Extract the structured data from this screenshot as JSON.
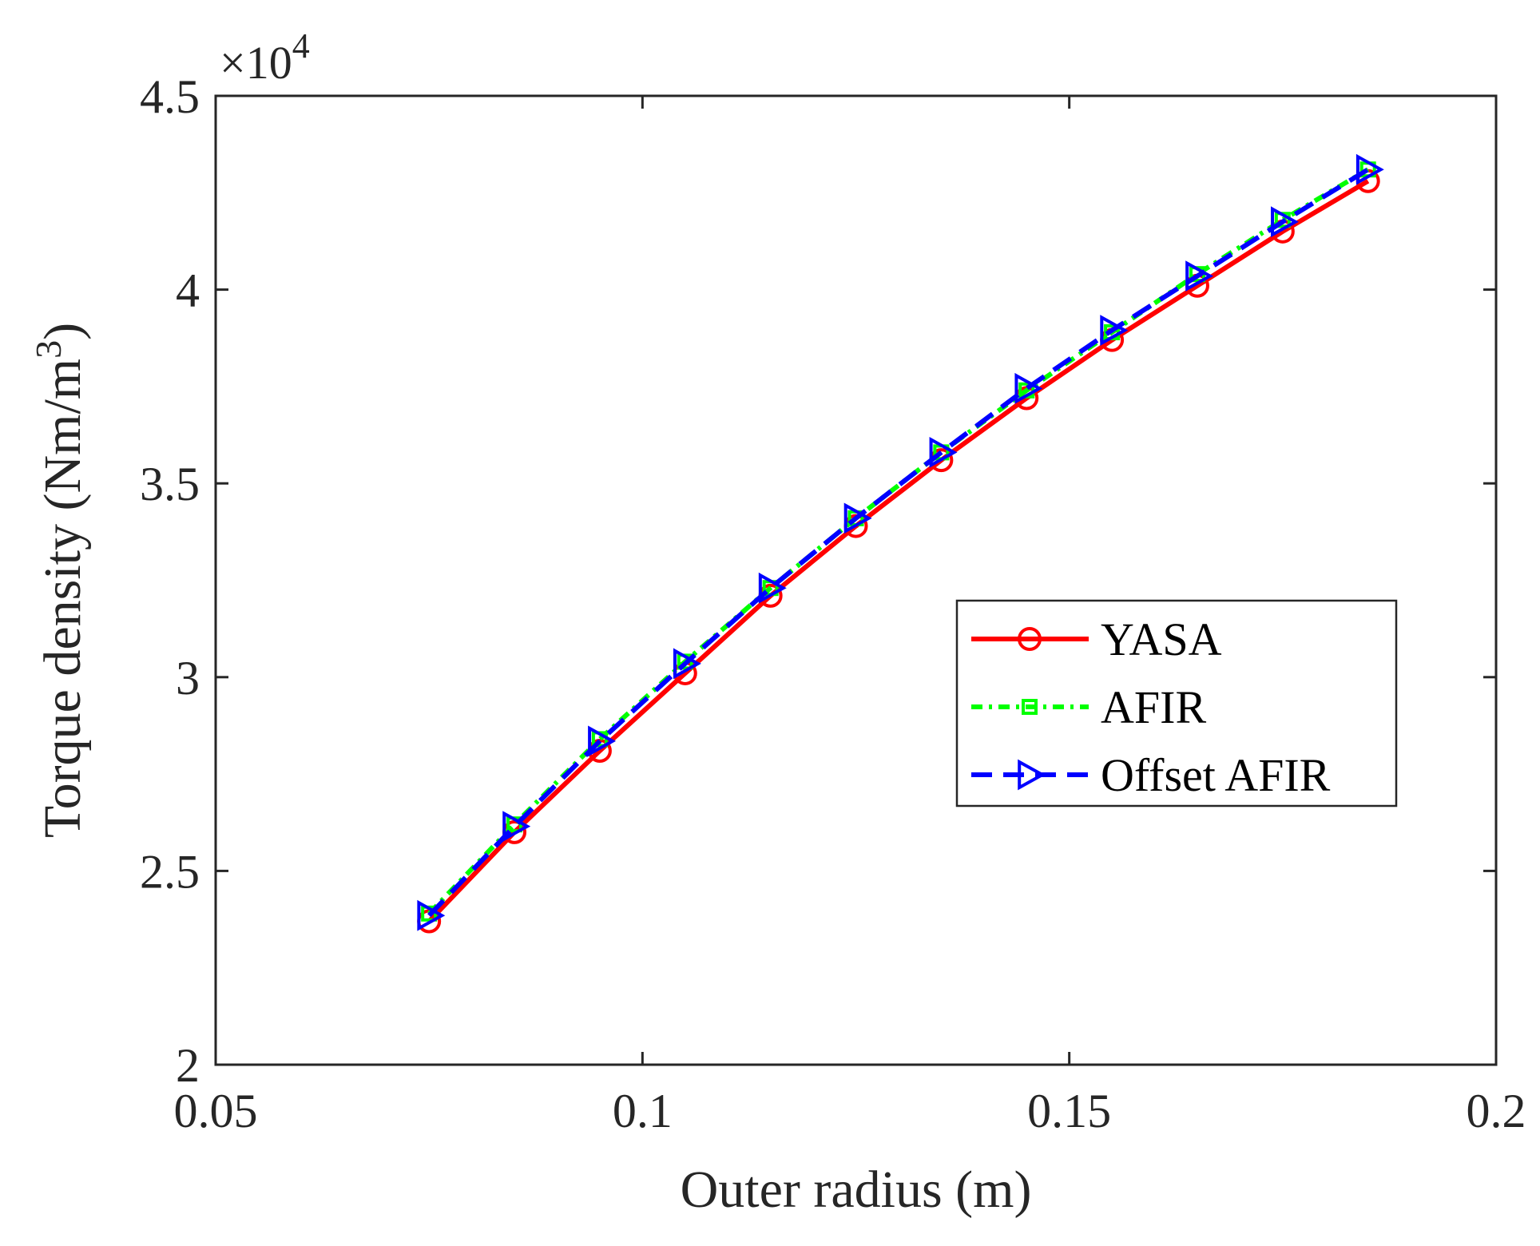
{
  "chart_data": {
    "type": "line",
    "xlabel": "Outer radius (m)",
    "ylabel_main": "Torque density (Nm/m",
    "ylabel_sup": "3",
    "ylabel_close": ")",
    "y_exponent_prefix": "×10",
    "y_exponent_power": "4",
    "xlim": [
      0.05,
      0.2
    ],
    "ylim": [
      20000,
      45000
    ],
    "y_scale": 10000,
    "xticks": [
      0.05,
      0.1,
      0.15,
      0.2
    ],
    "xtick_labels": [
      "0.05",
      "0.1",
      "0.15",
      "0.2"
    ],
    "yticks": [
      20000,
      25000,
      30000,
      35000,
      40000,
      45000
    ],
    "ytick_labels": [
      "2",
      "2.5",
      "3",
      "3.5",
      "4",
      "4.5"
    ],
    "grid": false,
    "legend_position": "center-right",
    "x": [
      0.075,
      0.085,
      0.095,
      0.105,
      0.115,
      0.125,
      0.135,
      0.145,
      0.155,
      0.165,
      0.175,
      0.185
    ],
    "series": [
      {
        "name": "YASA",
        "color": "#ff0000",
        "line_style": "solid",
        "marker": "circle",
        "values": [
          23700,
          26000,
          28100,
          30100,
          32100,
          33900,
          35600,
          37200,
          38700,
          40100,
          41500,
          42800
        ]
      },
      {
        "name": "AFIR",
        "color": "#00ff00",
        "line_style": "dash-dot",
        "marker": "square",
        "values": [
          23900,
          26200,
          28400,
          30400,
          32300,
          34100,
          35800,
          37400,
          38900,
          40400,
          41800,
          43100
        ]
      },
      {
        "name": "Offset AFIR",
        "color": "#0000ff",
        "line_style": "dashed",
        "marker": "triangle-right",
        "values": [
          23850,
          26150,
          28350,
          30350,
          32300,
          34100,
          35800,
          37450,
          38950,
          40350,
          41750,
          43100
        ]
      }
    ]
  }
}
